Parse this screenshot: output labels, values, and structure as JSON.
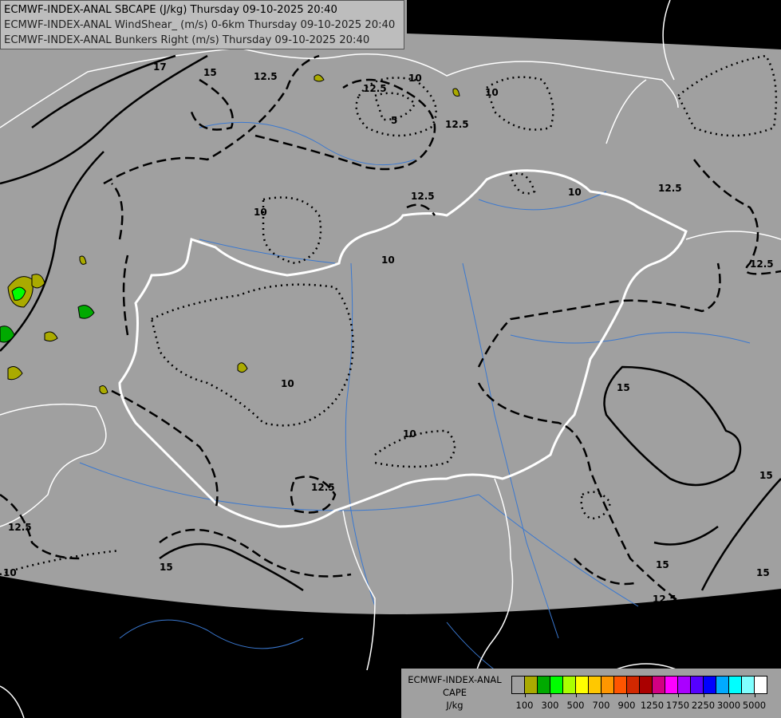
{
  "header": {
    "line1": "ECMWF-INDEX-ANAL SBCAPE (J/kg) Thursday 09-10-2025 20:40",
    "line2": "ECMWF-INDEX-ANAL WindShear_ (m/s) 0-6km Thursday 09-10-2025 20:40",
    "line3": "ECMWF-INDEX-ANAL Bunkers Right (m/s) Thursday 09-10-2025 20:40"
  },
  "legend": {
    "title_line1": "ECMWF-INDEX-ANAL",
    "title_line2": "CAPE",
    "unit": "J/kg",
    "colors": [
      "#a0a0a0",
      "#aaaa00",
      "#00aa00",
      "#00ff00",
      "#aaff00",
      "#ffff00",
      "#ffc800",
      "#ff9600",
      "#ff5500",
      "#d22800",
      "#aa0000",
      "#d20082",
      "#ff00ff",
      "#aa00ff",
      "#5500ff",
      "#0000ff",
      "#00aaff",
      "#00ffff",
      "#80ffff",
      "#ffffff"
    ],
    "tick_labels": [
      "100",
      "300",
      "500",
      "700",
      "900",
      "1250",
      "1750",
      "2250",
      "3000",
      "5000"
    ]
  },
  "contour_labels": {
    "c17": "17",
    "c15": "15",
    "c12_5": "12.5",
    "c10": "10",
    "c5": "5"
  },
  "map_colors": {
    "background": "#000000",
    "domain": "#a0a0a0",
    "country_border": "#ffffff",
    "rivers": "#3a78d0",
    "contour": "#000000"
  }
}
